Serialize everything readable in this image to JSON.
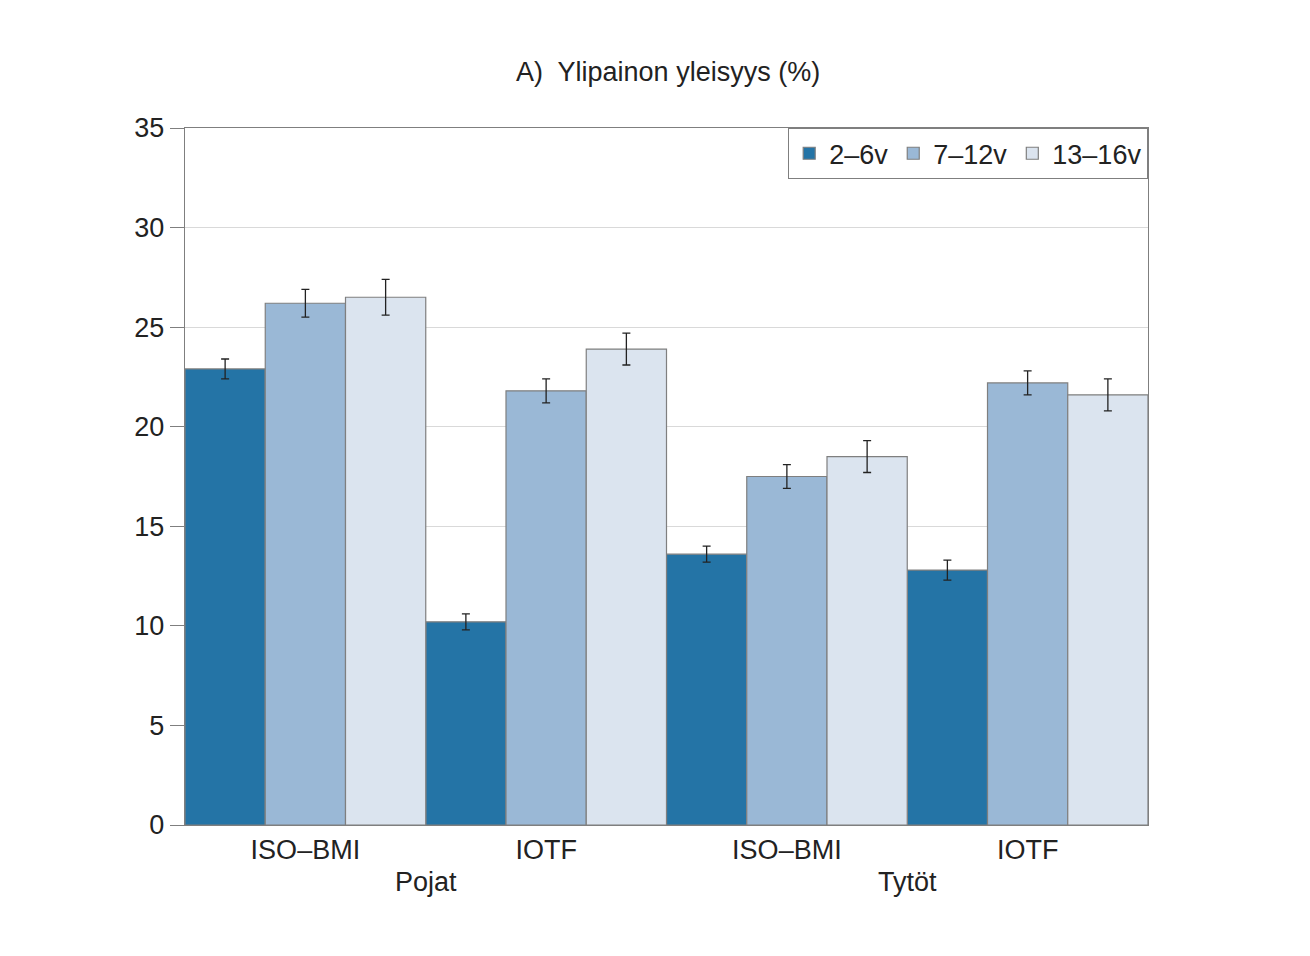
{
  "chart_data": {
    "type": "bar",
    "title": "A)  Ylipainon yleisyys (%)",
    "categories": [
      "ISO–BMI",
      "IOTF",
      "ISO–BMI",
      "IOTF"
    ],
    "category_groups": [
      "Pojat",
      "Pojat",
      "Tytöt",
      "Tytöt"
    ],
    "series": [
      {
        "name": "2–6v",
        "color": "#2474a6",
        "values": [
          22.9,
          10.2,
          13.6,
          12.8
        ],
        "errors": [
          0.5,
          0.4,
          0.4,
          0.5
        ]
      },
      {
        "name": "7–12v",
        "color": "#9ab8d6",
        "values": [
          26.2,
          21.8,
          17.5,
          22.2
        ],
        "errors": [
          0.7,
          0.6,
          0.6,
          0.6
        ]
      },
      {
        "name": "13–16v",
        "color": "#dbe4ef",
        "values": [
          26.5,
          23.9,
          18.5,
          21.6
        ],
        "errors": [
          0.9,
          0.8,
          0.8,
          0.8
        ]
      }
    ],
    "ylim": [
      0,
      35
    ],
    "yticks": [
      0,
      5,
      10,
      15,
      20,
      25,
      30,
      35
    ],
    "grid": true,
    "legend": "top right"
  }
}
